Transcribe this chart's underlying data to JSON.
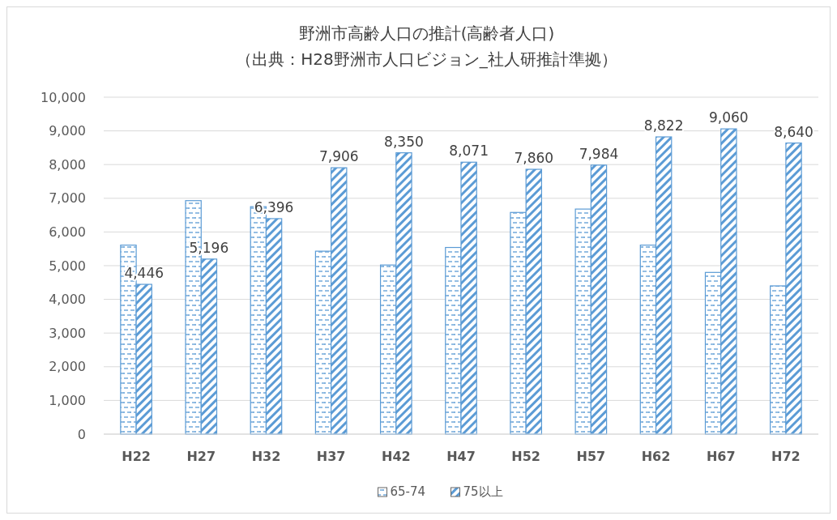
{
  "chart_data": {
    "type": "bar",
    "title": "野洲市高齢人口の推計(高齢者人口)",
    "subtitle": "（出典：H28野洲市人口ビジョン_社人研推計準拠）",
    "categories": [
      "H22",
      "H27",
      "H32",
      "H37",
      "H42",
      "H47",
      "H52",
      "H57",
      "H62",
      "H67",
      "H72"
    ],
    "series": [
      {
        "name": "65-74",
        "color": "#5b9bd5",
        "values": [
          5610,
          6930,
          6750,
          5430,
          5020,
          5540,
          6580,
          6680,
          5610,
          4800,
          4400
        ]
      },
      {
        "name": "75以上",
        "color": "#5b9bd5",
        "values": [
          4446,
          5196,
          6396,
          7906,
          8350,
          8071,
          7860,
          7984,
          8822,
          9060,
          8640
        ],
        "value_labels": [
          "4,446",
          "5,196",
          "6,396",
          "7,906",
          "8,350",
          "8,071",
          "7,860",
          "7,984",
          "8,822",
          "9,060",
          "8,640"
        ]
      }
    ],
    "ylim": [
      0,
      10000
    ],
    "yticks": [
      {
        "value": 0,
        "label": "0"
      },
      {
        "value": 1000,
        "label": "1,000"
      },
      {
        "value": 2000,
        "label": "2,000"
      },
      {
        "value": 3000,
        "label": "3,000"
      },
      {
        "value": 4000,
        "label": "4,000"
      },
      {
        "value": 5000,
        "label": "5,000"
      },
      {
        "value": 6000,
        "label": "6,000"
      },
      {
        "value": 7000,
        "label": "7,000"
      },
      {
        "value": 8000,
        "label": "8,000"
      },
      {
        "value": 9000,
        "label": "9,000"
      },
      {
        "value": 10000,
        "label": "10,000"
      }
    ],
    "grid": "y",
    "legend": "bottom"
  }
}
